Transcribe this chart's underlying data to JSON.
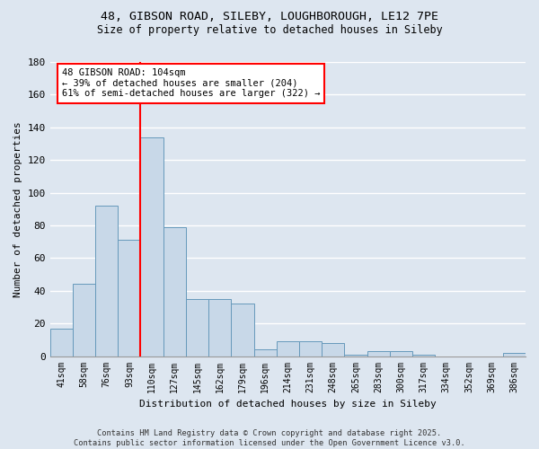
{
  "title_line1": "48, GIBSON ROAD, SILEBY, LOUGHBOROUGH, LE12 7PE",
  "title_line2": "Size of property relative to detached houses in Sileby",
  "xlabel": "Distribution of detached houses by size in Sileby",
  "ylabel": "Number of detached properties",
  "bar_labels": [
    "41sqm",
    "58sqm",
    "76sqm",
    "93sqm",
    "110sqm",
    "127sqm",
    "145sqm",
    "162sqm",
    "179sqm",
    "196sqm",
    "214sqm",
    "231sqm",
    "248sqm",
    "265sqm",
    "283sqm",
    "300sqm",
    "317sqm",
    "334sqm",
    "352sqm",
    "369sqm",
    "386sqm"
  ],
  "bar_values": [
    17,
    44,
    92,
    71,
    134,
    79,
    35,
    35,
    32,
    4,
    9,
    9,
    8,
    1,
    3,
    3,
    1,
    0,
    0,
    0,
    2
  ],
  "bar_color": "#c8d8e8",
  "bar_edge_color": "#6699bb",
  "background_color": "#dde6f0",
  "grid_color": "#ffffff",
  "vline_x_index": 4,
  "vline_color": "red",
  "annotation_text": "48 GIBSON ROAD: 104sqm\n← 39% of detached houses are smaller (204)\n61% of semi-detached houses are larger (322) →",
  "annotation_box_color": "white",
  "annotation_box_edge_color": "red",
  "ylim": [
    0,
    180
  ],
  "yticks": [
    0,
    20,
    40,
    60,
    80,
    100,
    120,
    140,
    160,
    180
  ],
  "footnote": "Contains HM Land Registry data © Crown copyright and database right 2025.\nContains public sector information licensed under the Open Government Licence v3.0."
}
